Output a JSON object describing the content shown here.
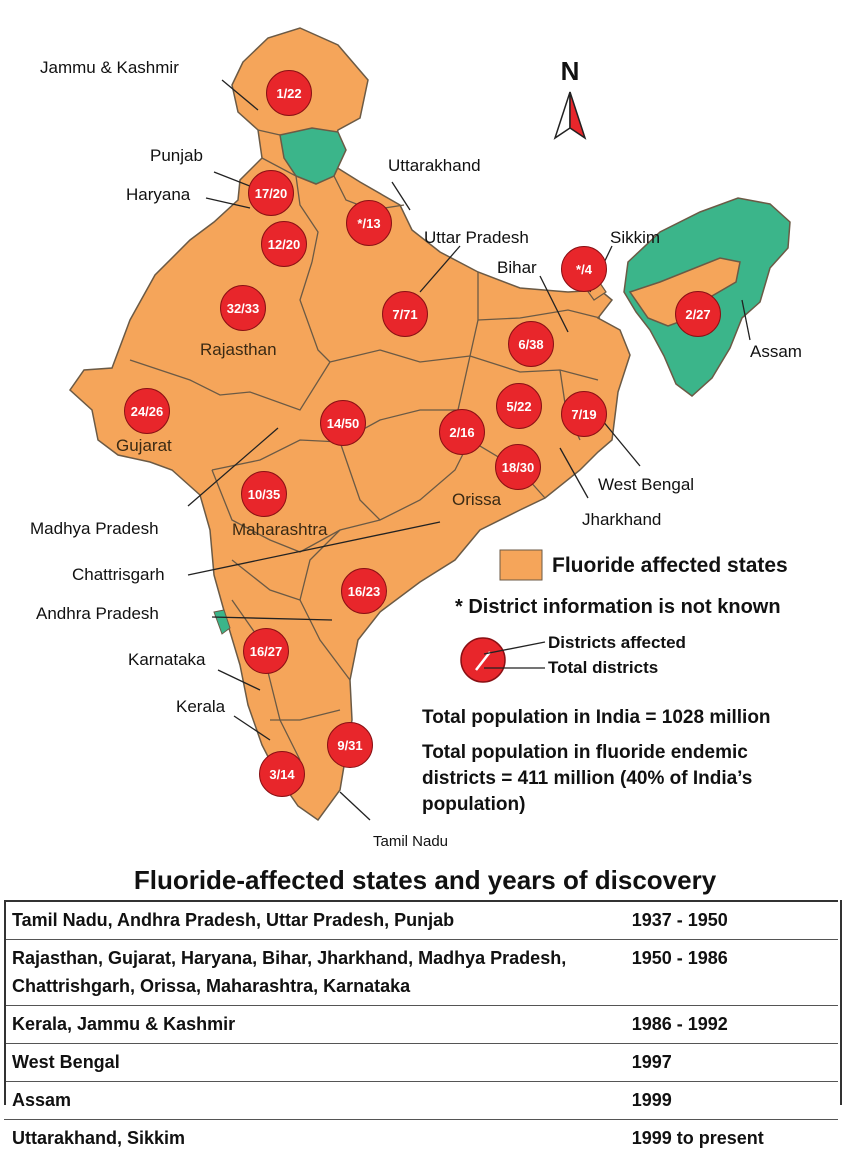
{
  "colors": {
    "affected": "#f5a55a",
    "unaffected": "#3bb58a",
    "badge": "#e8262b",
    "border": "#6b5a45"
  },
  "compass": {
    "letter": "N"
  },
  "state_labels": {
    "jammu_kashmir": "Jammu & Kashmir",
    "punjab": "Punjab",
    "haryana": "Haryana",
    "uttarakhand": "Uttarakhand",
    "uttar_pradesh": "Uttar Pradesh",
    "sikkim": "Sikkim",
    "bihar": "Bihar",
    "assam": "Assam",
    "rajasthan": "Rajasthan",
    "gujarat": "Gujarat",
    "west_bengal": "West Bengal",
    "jharkhand": "Jharkhand",
    "orissa": "Orissa",
    "madhya_pradesh": "Madhya Pradesh",
    "maharashtra": "Maharashtra",
    "chattrisgarh": "Chattrisgarh",
    "andhra_pradesh": "Andhra Pradesh",
    "karnataka": "Karnataka",
    "kerala": "Kerala",
    "tamil_nadu": "Tamil Nadu"
  },
  "district_badges": [
    {
      "state": "Jammu & Kashmir",
      "value": "1/22"
    },
    {
      "state": "Punjab",
      "value": "17/20"
    },
    {
      "state": "Uttarakhand",
      "value": "*/13"
    },
    {
      "state": "Haryana",
      "value": "12/20"
    },
    {
      "state": "Rajasthan",
      "value": "32/33"
    },
    {
      "state": "Uttar Pradesh",
      "value": "7/71"
    },
    {
      "state": "Sikkim",
      "value": "*/4"
    },
    {
      "state": "Assam",
      "value": "2/27"
    },
    {
      "state": "Bihar",
      "value": "6/38"
    },
    {
      "state": "Gujarat",
      "value": "24/26"
    },
    {
      "state": "Madhya Pradesh",
      "value": "14/50"
    },
    {
      "state": "Jharkhand",
      "value": "5/22"
    },
    {
      "state": "West Bengal",
      "value": "7/19"
    },
    {
      "state": "Chattrisgarh",
      "value": "2/16"
    },
    {
      "state": "Orissa",
      "value": "18/30"
    },
    {
      "state": "Maharashtra",
      "value": "10/35"
    },
    {
      "state": "Andhra Pradesh",
      "value": "16/23"
    },
    {
      "state": "Karnataka",
      "value": "16/27"
    },
    {
      "state": "Tamil Nadu",
      "value": "9/31"
    },
    {
      "state": "Kerala",
      "value": "3/14"
    }
  ],
  "legend": {
    "affected_label": "Fluoride affected states",
    "not_known_label": "* District information is not known",
    "districts_affected_label": "Districts affected",
    "total_districts_label": "Total districts"
  },
  "population": {
    "total_text": "Total population in India = 1028 million",
    "endemic_line1": "Total population in fluoride endemic",
    "endemic_line2": "districts = 411 million (40% of India’s",
    "endemic_line3": "population)"
  },
  "table": {
    "title": "Fluoride-affected states and years of discovery",
    "rows": [
      {
        "states": "Tamil Nadu, Andhra Pradesh, Uttar Pradesh, Punjab",
        "years": "1937 - 1950"
      },
      {
        "states": "Rajasthan, Gujarat, Haryana, Bihar, Jharkhand, Madhya Pradesh, Chattrishgarh, Orissa, Maharashtra, Karnataka",
        "years": "1950 - 1986"
      },
      {
        "states": "Kerala, Jammu & Kashmir",
        "years": "1986 - 1992"
      },
      {
        "states": "West Bengal",
        "years": "1997"
      },
      {
        "states": "Assam",
        "years": "1999"
      },
      {
        "states": "Uttarakhand, Sikkim",
        "years": "1999 to present"
      }
    ]
  }
}
